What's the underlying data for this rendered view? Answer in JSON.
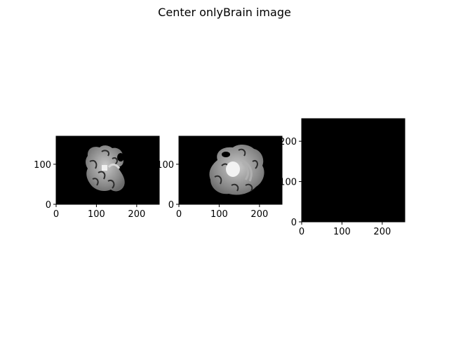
{
  "figure": {
    "title": "Center  onlyBrain image"
  },
  "chart_data": [
    {
      "type": "heatmap",
      "title": "",
      "xlabel": "",
      "ylabel": "",
      "xlim": [
        0,
        256
      ],
      "ylim": [
        0,
        170
      ],
      "xticks": [
        0,
        100,
        200
      ],
      "yticks": [
        0,
        100
      ],
      "colormap": "gray",
      "background": "#000000",
      "content": "brain-slice-1"
    },
    {
      "type": "heatmap",
      "title": "",
      "xlabel": "",
      "ylabel": "",
      "xlim": [
        0,
        256
      ],
      "ylim": [
        0,
        170
      ],
      "xticks": [
        0,
        100,
        200
      ],
      "yticks": [
        0,
        100
      ],
      "colormap": "gray",
      "background": "#000000",
      "content": "brain-slice-2"
    },
    {
      "type": "heatmap",
      "title": "",
      "xlabel": "",
      "ylabel": "",
      "xlim": [
        0,
        256
      ],
      "ylim": [
        0,
        256
      ],
      "xticks": [
        0,
        100,
        200
      ],
      "yticks": [
        0,
        100,
        200
      ],
      "colormap": "gray",
      "background": "#000000",
      "content": "empty"
    }
  ]
}
